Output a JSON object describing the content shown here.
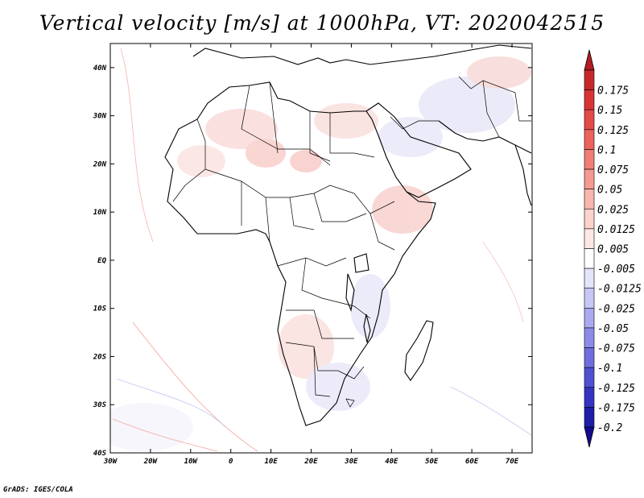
{
  "title": "Vertical velocity [m/s] at 1000hPa, VT: 2020042515",
  "credit": "GrADS: IGES/COLA",
  "map": {
    "lon_range": [
      -30,
      75
    ],
    "lat_range": [
      -40,
      45
    ],
    "lon_ticks": [
      {
        "value": -30,
        "label": "30W"
      },
      {
        "value": -20,
        "label": "20W"
      },
      {
        "value": -10,
        "label": "10W"
      },
      {
        "value": 0,
        "label": "0"
      },
      {
        "value": 10,
        "label": "10E"
      },
      {
        "value": 20,
        "label": "20E"
      },
      {
        "value": 30,
        "label": "30E"
      },
      {
        "value": 40,
        "label": "40E"
      },
      {
        "value": 50,
        "label": "50E"
      },
      {
        "value": 60,
        "label": "60E"
      },
      {
        "value": 70,
        "label": "70E"
      }
    ],
    "lat_ticks": [
      {
        "value": 40,
        "label": "40N"
      },
      {
        "value": 30,
        "label": "30N"
      },
      {
        "value": 20,
        "label": "20N"
      },
      {
        "value": 10,
        "label": "10N"
      },
      {
        "value": 0,
        "label": "EQ"
      },
      {
        "value": -10,
        "label": "10S"
      },
      {
        "value": -20,
        "label": "20S"
      },
      {
        "value": -30,
        "label": "30S"
      },
      {
        "value": -40,
        "label": "40S"
      }
    ]
  },
  "colorbar": {
    "levels": [
      {
        "label": "0.175",
        "color": "#c8282a"
      },
      {
        "label": "0.15",
        "color": "#d83434"
      },
      {
        "label": "0.125",
        "color": "#e44a48"
      },
      {
        "label": "0.1",
        "color": "#ec625c"
      },
      {
        "label": "0.075",
        "color": "#f07e76"
      },
      {
        "label": "0.05",
        "color": "#f49a92"
      },
      {
        "label": "0.025",
        "color": "#f8b6ae"
      },
      {
        "label": "0.0125",
        "color": "#fbd2cc"
      },
      {
        "label": "0.005",
        "color": "#fde8e4"
      },
      {
        "label": "-0.005",
        "color": "#ffffff"
      },
      {
        "label": "-0.0125",
        "color": "#e4e4fb"
      },
      {
        "label": "-0.025",
        "color": "#c8c8f6"
      },
      {
        "label": "-0.05",
        "color": "#aaaaf0"
      },
      {
        "label": "-0.075",
        "color": "#8c8ce8"
      },
      {
        "label": "-0.1",
        "color": "#6e6ede"
      },
      {
        "label": "-0.125",
        "color": "#5050d2"
      },
      {
        "label": "-0.175",
        "color": "#3434c0"
      },
      {
        "label": "-0.2",
        "color": "#1e1ea8"
      }
    ],
    "top_triangle_color": "#b01e22",
    "bottom_triangle_color": "#140a90"
  }
}
